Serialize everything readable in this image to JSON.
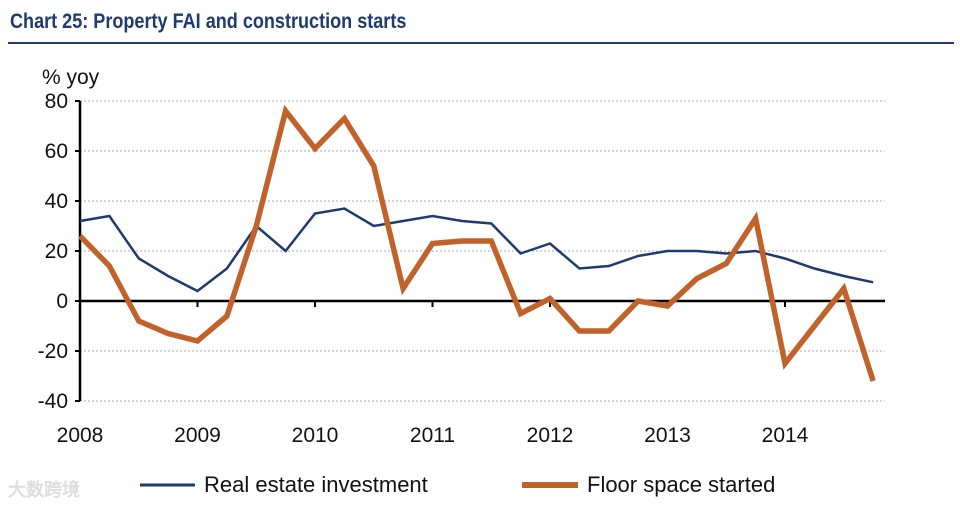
{
  "title": "Chart 25: Property FAI and construction starts",
  "watermark": "大数跨境",
  "chart_data": {
    "type": "line",
    "title": "Chart 25: Property FAI and construction starts",
    "ylabel": "% yoy",
    "xlabel": "",
    "ylim": [
      -40,
      80
    ],
    "yticks": [
      "80",
      "60",
      "40",
      "20",
      "0",
      "-20",
      "-40"
    ],
    "ytick_values": [
      80,
      60,
      40,
      20,
      0,
      -20,
      -40
    ],
    "xticks": [
      "2008",
      "2009",
      "2010",
      "2011",
      "2012",
      "2013",
      "2014"
    ],
    "xlim": [
      2008,
      2015
    ],
    "grid": true,
    "legend_position": "bottom",
    "x": [
      2008.0,
      2008.25,
      2008.5,
      2008.75,
      2009.0,
      2009.25,
      2009.5,
      2009.75,
      2010.0,
      2010.25,
      2010.5,
      2010.75,
      2011.0,
      2011.25,
      2011.5,
      2011.75,
      2012.0,
      2012.25,
      2012.5,
      2012.75,
      2013.0,
      2013.25,
      2013.5,
      2013.75,
      2014.0,
      2014.25,
      2014.5,
      2014.75
    ],
    "series": [
      {
        "name": "Real estate investment",
        "color": "#1f3a6e",
        "values": [
          32,
          34,
          17,
          10,
          4,
          13,
          30,
          20,
          35,
          37,
          30,
          32,
          34,
          32,
          31,
          19,
          23,
          13,
          14,
          18,
          20,
          20,
          19,
          20,
          17,
          13,
          10,
          7.5
        ]
      },
      {
        "name": "Floor space started",
        "color": "#c0622a",
        "values": [
          26,
          14,
          -8,
          -13,
          -16,
          -6,
          30,
          76,
          61,
          73,
          54,
          5,
          23,
          24,
          24,
          -5,
          1,
          -12,
          -12,
          0,
          -2,
          9,
          15,
          33,
          -25,
          -10,
          5,
          -32
        ]
      }
    ]
  }
}
